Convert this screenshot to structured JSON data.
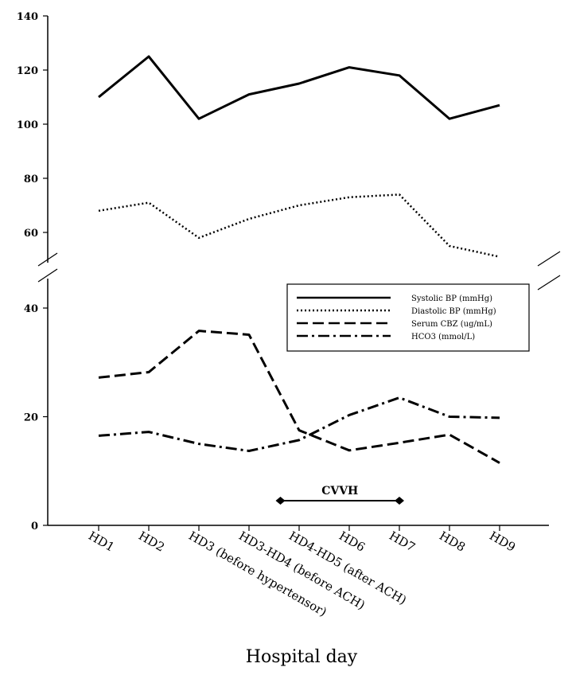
{
  "chart_data": {
    "type": "line",
    "title": "",
    "xlabel": "Hospital day",
    "ylabel": "",
    "categories": [
      "HD1",
      "HD2",
      "HD3 (before hypertensor)",
      "HD3-HD4 (before ACH)",
      "HD4-HD5 (after ACH)",
      "HD6",
      "HD7",
      "HD8",
      "HD9"
    ],
    "y_axis": {
      "broken": true,
      "lower_segment": {
        "range": [
          0,
          45
        ],
        "ticks": [
          0,
          20,
          40
        ]
      },
      "upper_segment": {
        "range": [
          50,
          140
        ],
        "ticks": [
          60,
          80,
          100,
          120,
          140
        ]
      }
    },
    "series": [
      {
        "name": "Systolic BP (mmHg)",
        "style": "solid",
        "values": [
          110,
          125,
          102,
          111,
          115,
          121,
          118,
          102,
          107
        ]
      },
      {
        "name": "Diastolic BP (mmHg)",
        "style": "dotted",
        "values": [
          68,
          71,
          58,
          65,
          70,
          73,
          74,
          55,
          51
        ]
      },
      {
        "name": "Serum CBZ (ug/mL)",
        "style": "dashed",
        "values": [
          27.2,
          28.2,
          35.8,
          35.1,
          17.5,
          13.8,
          15.2,
          16.7,
          11.5
        ]
      },
      {
        "name": "HCO3 (mmol/L)",
        "style": "dash-dot",
        "values": [
          16.5,
          17.2,
          15.0,
          13.7,
          15.7,
          20.3,
          23.5,
          20.0,
          19.8
        ]
      }
    ],
    "annotations": [
      {
        "text": "CVVH",
        "from_category": "HD4-HD5 (after ACH)",
        "to_category": "HD7",
        "offset_from": -0.5
      }
    ],
    "legend_position": "right-middle",
    "grid": false
  }
}
